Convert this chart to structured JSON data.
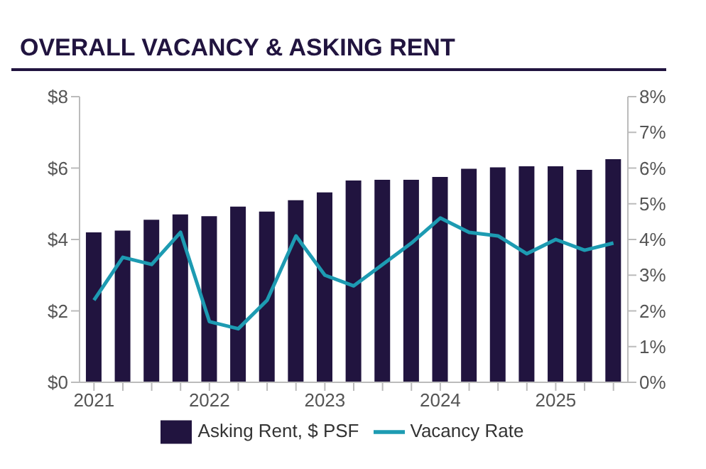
{
  "chart_data": {
    "type": "bar",
    "title": "OVERALL VACANCY & ASKING RENT",
    "categories": [
      "2021",
      null,
      null,
      null,
      "2022",
      null,
      null,
      null,
      "2023",
      null,
      null,
      null,
      "2024",
      null,
      null,
      null,
      "2025",
      null,
      null
    ],
    "series": [
      {
        "name": "Asking Rent, $ PSF",
        "color": "#21143f",
        "values": [
          4.2,
          4.25,
          4.55,
          4.7,
          4.65,
          4.92,
          4.78,
          5.1,
          5.32,
          5.65,
          5.67,
          5.67,
          5.75,
          5.98,
          6.02,
          6.05,
          6.05,
          5.95,
          6.25
        ]
      },
      {
        "name": "Vacancy Rate",
        "type": "line",
        "axis": "y2",
        "color": "#1d9bb2",
        "values": [
          2.3,
          3.5,
          3.3,
          4.2,
          1.7,
          1.5,
          2.3,
          4.1,
          3.0,
          2.7,
          3.3,
          3.9,
          4.6,
          4.2,
          4.1,
          3.6,
          4.0,
          3.7,
          3.9
        ]
      }
    ],
    "ylim": [
      0,
      8
    ],
    "yticks": [
      {
        "value": 0,
        "label": "$0"
      },
      {
        "value": 2,
        "label": "$2"
      },
      {
        "value": 4,
        "label": "$4"
      },
      {
        "value": 6,
        "label": "$6"
      },
      {
        "value": 8,
        "label": "$8"
      }
    ],
    "y2lim": [
      0,
      8
    ],
    "y2ticks": [
      {
        "value": 0,
        "label": "0%"
      },
      {
        "value": 1,
        "label": "1%"
      },
      {
        "value": 2,
        "label": "2%"
      },
      {
        "value": 3,
        "label": "3%"
      },
      {
        "value": 4,
        "label": "4%"
      },
      {
        "value": 5,
        "label": "5%"
      },
      {
        "value": 6,
        "label": "6%"
      },
      {
        "value": 7,
        "label": "7%"
      },
      {
        "value": 8,
        "label": "8%"
      }
    ],
    "grid": false,
    "legend": "bottom",
    "marker": "none",
    "line_style": "solid"
  }
}
